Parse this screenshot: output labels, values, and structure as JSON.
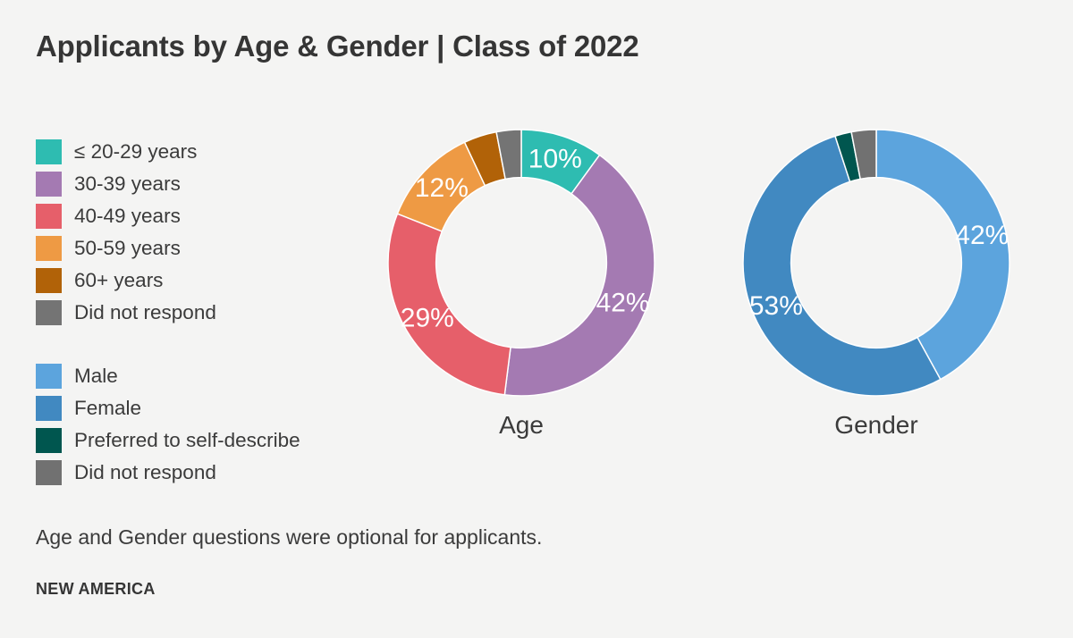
{
  "page": {
    "title": "Applicants by Age & Gender | Class of 2022",
    "footnote": "Age and Gender questions were optional for applicants.",
    "brand": "NEW AMERICA",
    "background_color": "#f4f4f3",
    "text_color": "#3b3b3b"
  },
  "chart_data": [
    {
      "type": "donut",
      "title": "Age",
      "categories": [
        "≤ 20-29 years",
        "30-39 years",
        "40-49 years",
        "50-59 years",
        "60+ years",
        "Did not respond"
      ],
      "values": [
        10,
        42,
        29,
        12,
        4,
        3
      ],
      "slice_labels": [
        "10%",
        "42%",
        "29%",
        "12%",
        "",
        ""
      ],
      "colors": [
        "#2ebcb1",
        "#a47ab2",
        "#e65f6a",
        "#ee9a44",
        "#b16208",
        "#747474"
      ],
      "start_angle_deg": 0,
      "direction": "clockwise",
      "inner_radius_ratio": 0.64,
      "separator_color": "#ffffff",
      "label_color": "#ffffff",
      "legend_position": "left"
    },
    {
      "type": "donut",
      "title": "Gender",
      "categories": [
        "Male",
        "Female",
        "Preferred to self-describe",
        "Did not respond"
      ],
      "values": [
        42,
        53,
        2,
        3
      ],
      "slice_labels": [
        "42%",
        "53%",
        "",
        ""
      ],
      "colors": [
        "#5ca4dd",
        "#4189c1",
        "#00564f",
        "#717171"
      ],
      "start_angle_deg": 0,
      "direction": "clockwise",
      "inner_radius_ratio": 0.64,
      "separator_color": "#ffffff",
      "label_color": "#ffffff",
      "legend_position": "left"
    }
  ]
}
